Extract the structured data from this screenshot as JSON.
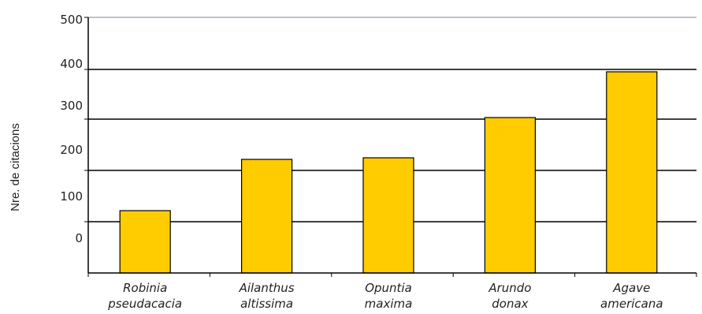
{
  "chart_data": {
    "type": "bar",
    "title": "",
    "xlabel": "",
    "ylabel": "Nre. de citacions",
    "ylim": [
      0,
      500
    ],
    "y_ticks": [
      "0",
      "100",
      "200",
      "300",
      "400",
      "500"
    ],
    "categories": [
      [
        "Robinia",
        "pseudacacia"
      ],
      [
        "Ailanthus",
        "altissima"
      ],
      [
        "Opuntia",
        "maxima"
      ],
      [
        "Arundo",
        "donax"
      ],
      [
        "Agave",
        "americana"
      ]
    ],
    "values": [
      120,
      235,
      237,
      318,
      397
    ],
    "bar_color": "#FFCC00",
    "bar_outline": "#000000",
    "grid": true,
    "top_gridline_color": "#B8A8B8"
  }
}
